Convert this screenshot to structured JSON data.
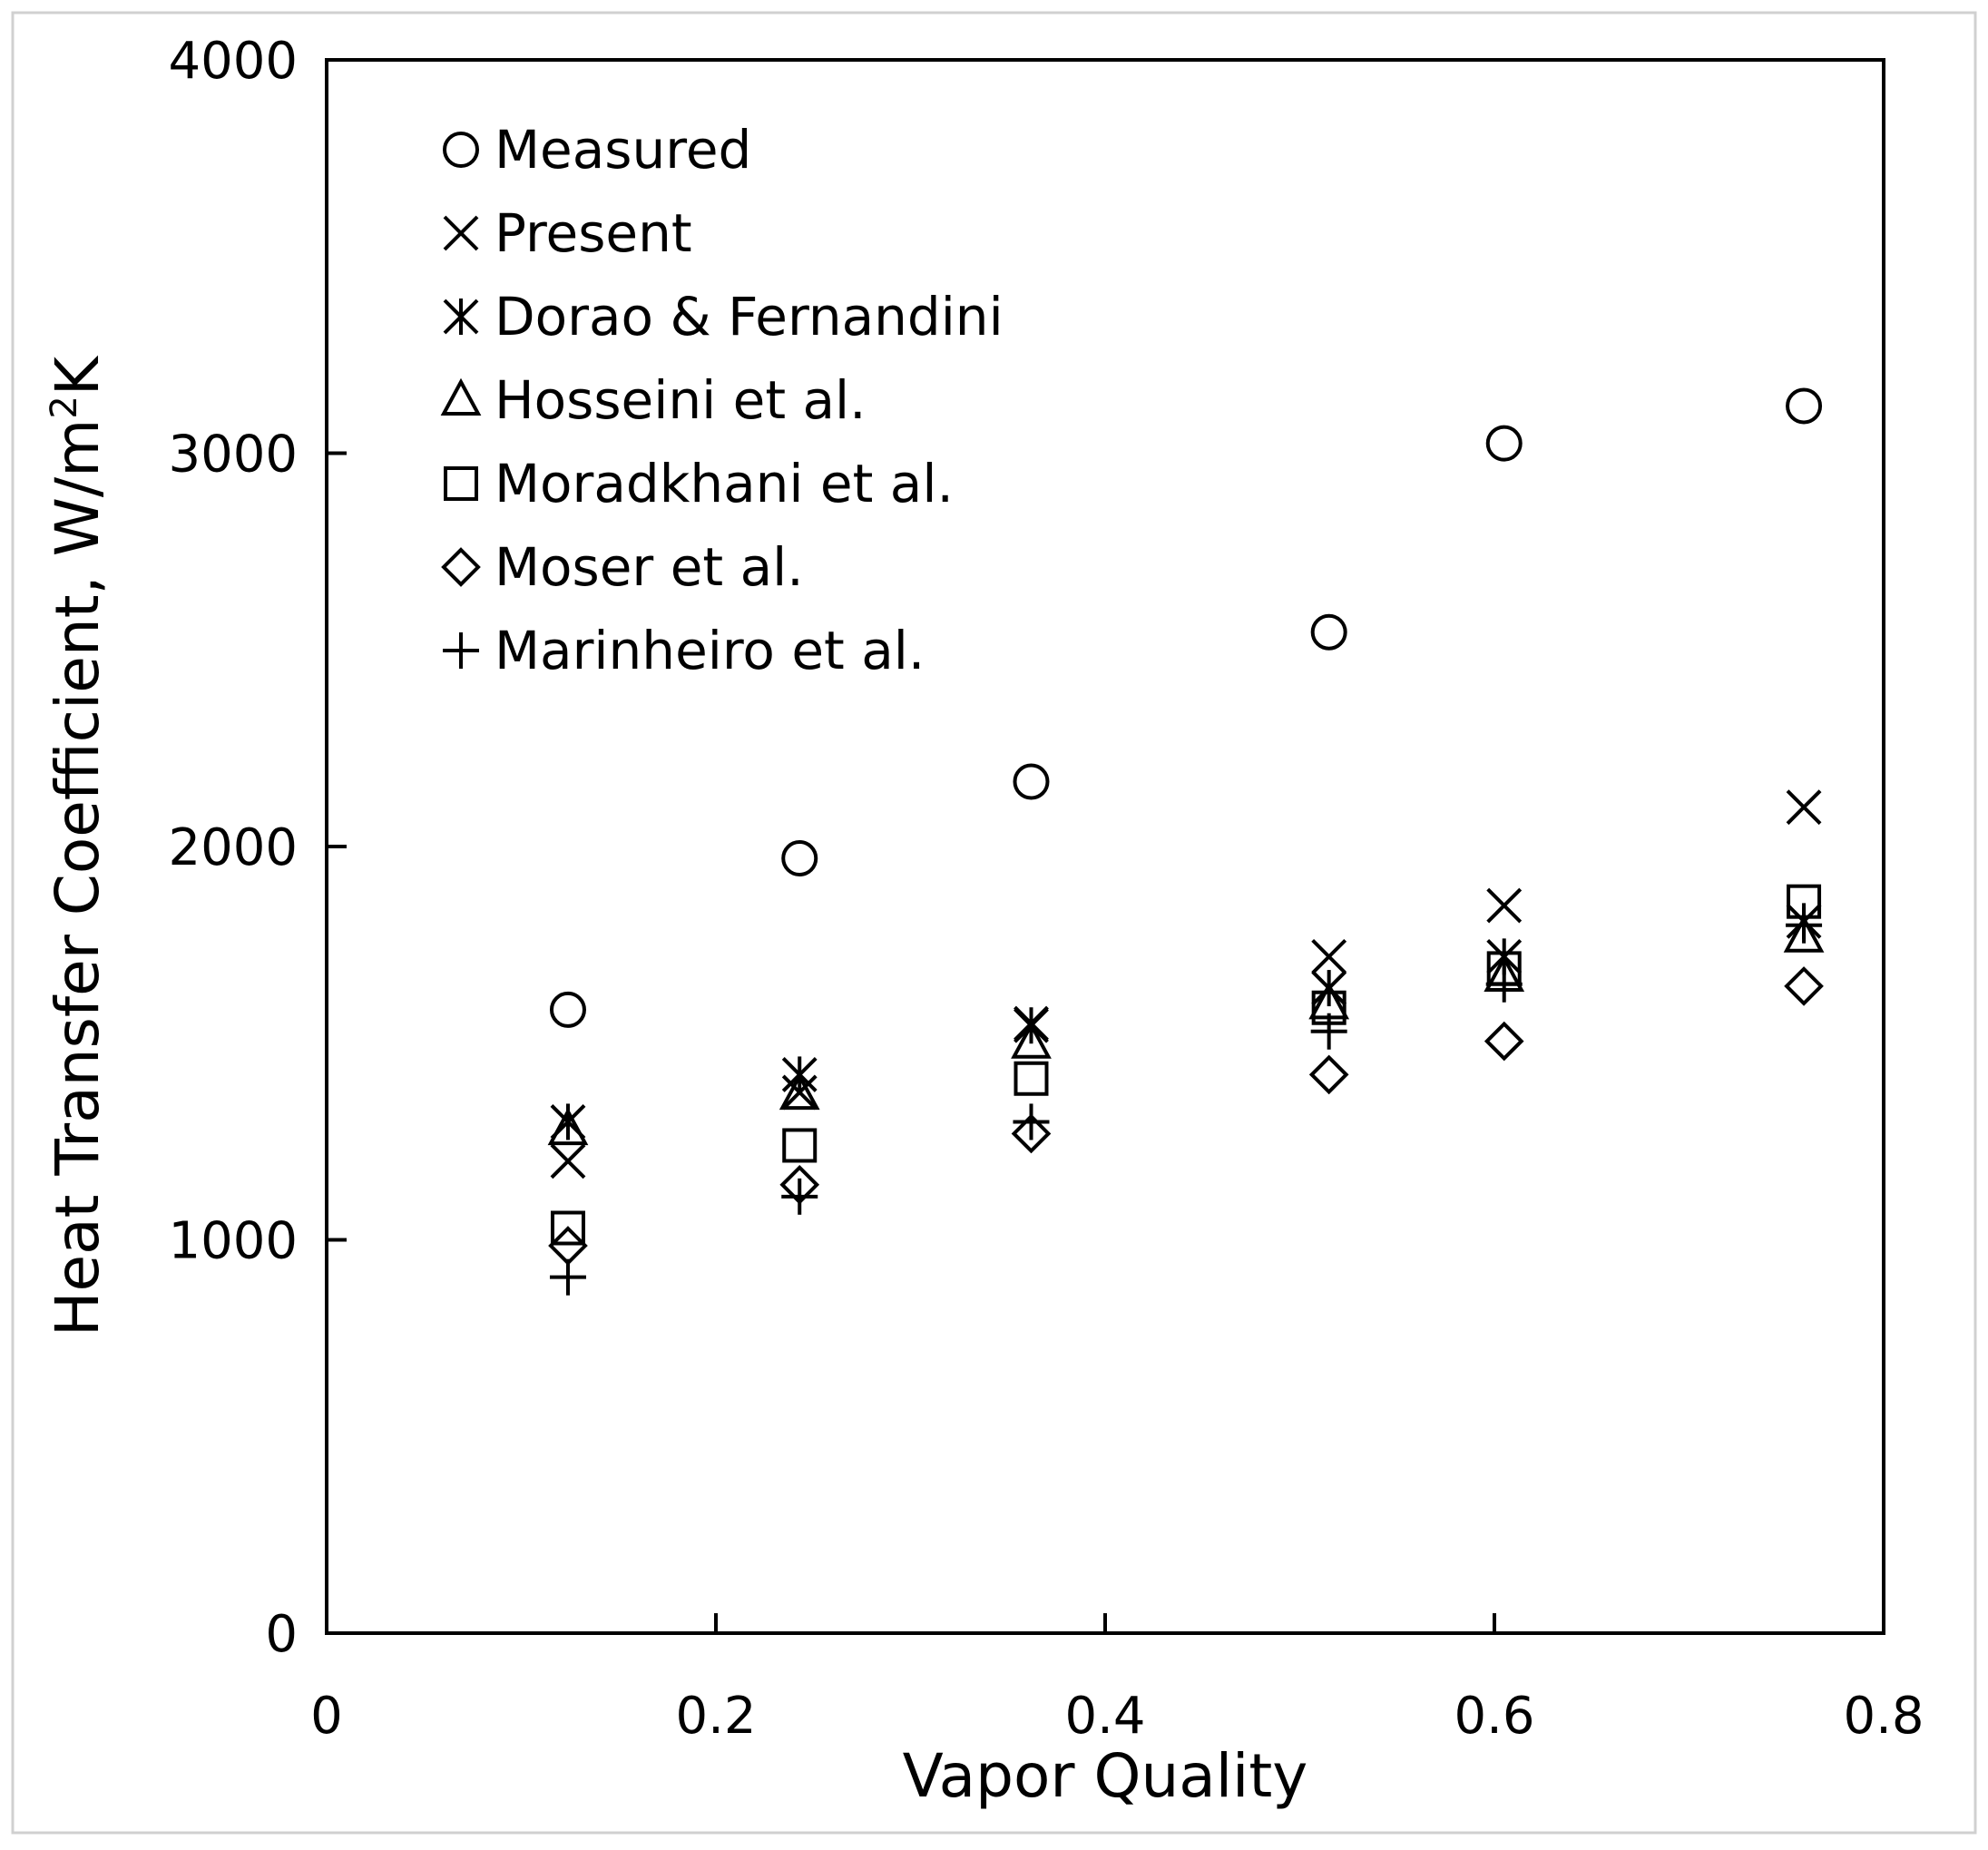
{
  "chart_data": {
    "type": "scatter",
    "title": "",
    "xlabel": "Vapor Quality",
    "ylabel_main": "Heat Transfer Coefficient, W/m",
    "ylabel_sup": "2",
    "ylabel_tail": "K",
    "xlim": [
      0,
      0.8
    ],
    "ylim": [
      0,
      4000
    ],
    "xticks": [
      0,
      0.2,
      0.4,
      0.6,
      0.8
    ],
    "xtick_labels": [
      "0",
      "0.2",
      "0.4",
      "0.6",
      "0.8"
    ],
    "yticks": [
      0,
      1000,
      2000,
      3000,
      4000
    ],
    "ytick_labels": [
      "0",
      "1000",
      "2000",
      "3000",
      "4000"
    ],
    "grid": false,
    "legend_position": "top-left",
    "x": [
      0.124,
      0.243,
      0.362,
      0.515,
      0.605,
      0.759
    ],
    "series": [
      {
        "name": "Measured",
        "marker": "circle",
        "values": [
          1585,
          1970,
          2165,
          2545,
          3025,
          3120
        ]
      },
      {
        "name": "Present",
        "marker": "x",
        "values": [
          1200,
          1375,
          1550,
          1720,
          1850,
          2100
        ]
      },
      {
        "name": "Dorao & Fernandini",
        "marker": "asterisk",
        "values": [
          1300,
          1420,
          1545,
          1640,
          1720,
          1810
        ]
      },
      {
        "name": "Hosseini et al.",
        "marker": "triangle",
        "values": [
          1280,
          1370,
          1500,
          1600,
          1670,
          1770
        ]
      },
      {
        "name": "Moradkhani et al.",
        "marker": "square",
        "values": [
          1030,
          1240,
          1410,
          1590,
          1690,
          1860
        ]
      },
      {
        "name": "Moser et al.",
        "marker": "diamond",
        "values": [
          985,
          1140,
          1270,
          1420,
          1505,
          1645
        ]
      },
      {
        "name": "Marinheiro et al.",
        "marker": "plus",
        "values": [
          905,
          1110,
          1300,
          1530,
          1650,
          1800
        ]
      }
    ]
  }
}
